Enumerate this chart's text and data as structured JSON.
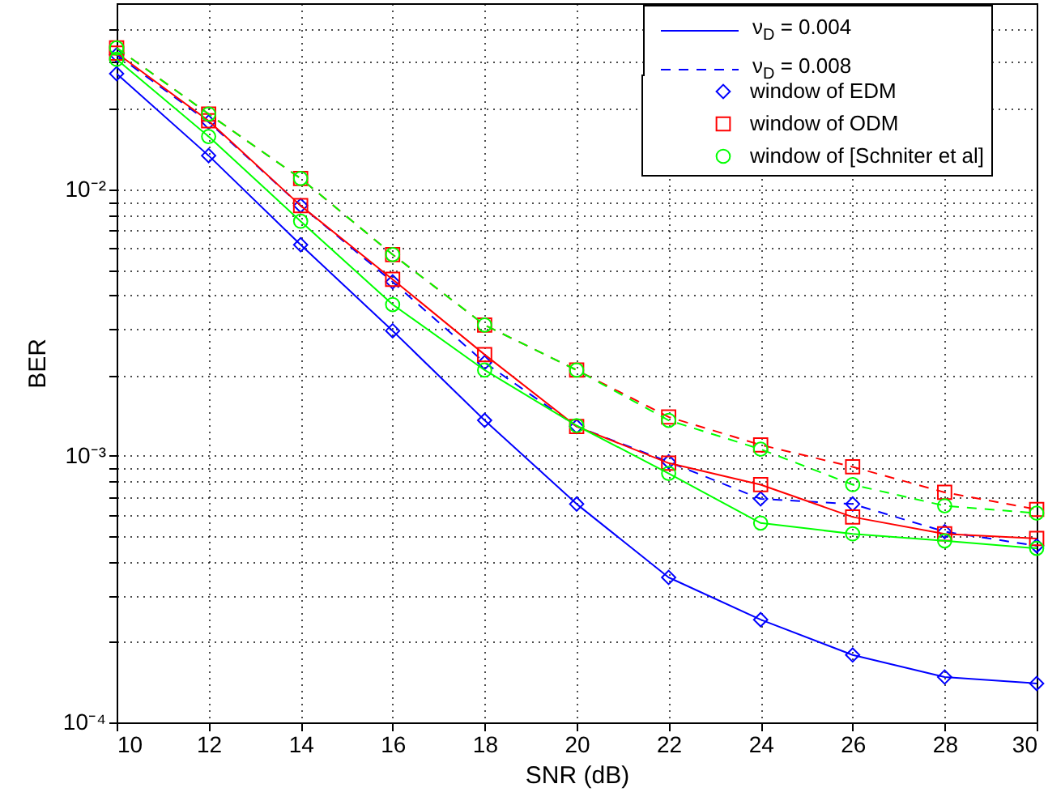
{
  "chart_data": {
    "type": "line",
    "xlabel": "SNR (dB)",
    "ylabel": "BER",
    "x": [
      10,
      12,
      14,
      16,
      18,
      20,
      22,
      24,
      26,
      28,
      30
    ],
    "series": [
      {
        "name": "window of EDM",
        "color": "#0000ff",
        "marker": "diamond",
        "line_style": "solid",
        "values": [
          0.0272,
          0.0134,
          0.0062,
          0.00295,
          0.00136,
          0.00066,
          0.00035,
          0.000243,
          0.000179,
          0.000148,
          0.00014
        ]
      },
      {
        "color": "#0000ff",
        "marker": "diamond",
        "line_style": "dashed",
        "values": [
          0.032,
          0.0179,
          0.0087,
          0.0045,
          0.00224,
          0.00129,
          0.00095,
          0.00069,
          0.00066,
          0.00052,
          0.00046
        ]
      },
      {
        "name": "window of ODM",
        "color": "#ff0000",
        "marker": "square",
        "line_style": "solid",
        "values": [
          0.0325,
          0.0181,
          0.0087,
          0.0046,
          0.0024,
          0.00129,
          0.00094,
          0.00078,
          0.00059,
          0.00051,
          0.00049
        ]
      },
      {
        "color": "#ff0000",
        "marker": "square",
        "line_style": "dashed",
        "values": [
          0.034,
          0.0192,
          0.011,
          0.0057,
          0.0031,
          0.0021,
          0.0014,
          0.0011,
          0.00091,
          0.00073,
          0.00063
        ]
      },
      {
        "name": "window of [Schniter et al]",
        "color": "#00ff00",
        "marker": "circle",
        "line_style": "solid",
        "values": [
          0.0308,
          0.0158,
          0.0076,
          0.0037,
          0.0021,
          0.0013,
          0.00086,
          0.00056,
          0.00051,
          0.00048,
          0.00045
        ]
      },
      {
        "color": "#00ff00",
        "marker": "circle",
        "line_style": "dashed",
        "values": [
          0.034,
          0.0192,
          0.011,
          0.0057,
          0.0031,
          0.0021,
          0.00136,
          0.00106,
          0.00078,
          0.00065,
          0.00061
        ]
      }
    ],
    "annotations": [
      "ν$_{D}$ = 0.004",
      "ν$_{D}$ = 0.008"
    ],
    "log": true,
    "grid": true,
    "legend": "top right",
    "xlim": [
      10,
      30
    ],
    "xticks": [
      10,
      12,
      14,
      16,
      18,
      20,
      22,
      24,
      26,
      28,
      30
    ],
    "ylim": [
      0.0001,
      0.05
    ],
    "yticks": [
      {
        "value": 0.0001,
        "label": "10⁻⁴"
      },
      {
        "value": 0.0002,
        "label": null
      },
      {
        "value": 0.0003,
        "label": null
      },
      {
        "value": 0.0004,
        "label": null
      },
      {
        "value": 0.0005,
        "label": null
      },
      {
        "value": 0.0006,
        "label": null
      },
      {
        "value": 0.0007,
        "label": null
      },
      {
        "value": 0.0008,
        "label": null
      },
      {
        "value": 0.0009,
        "label": null
      },
      {
        "value": 0.001,
        "label": "10⁻³"
      },
      {
        "value": 0.002,
        "label": null
      },
      {
        "value": 0.003,
        "label": null
      },
      {
        "value": 0.004,
        "label": null
      },
      {
        "value": 0.005,
        "label": null
      },
      {
        "value": 0.006,
        "label": null
      },
      {
        "value": 0.007,
        "label": null
      },
      {
        "value": 0.008,
        "label": null
      },
      {
        "value": 0.009,
        "label": null
      },
      {
        "value": 0.01,
        "label": "10⁻²"
      },
      {
        "value": 0.02,
        "label": null
      },
      {
        "value": 0.03,
        "label": null
      },
      {
        "value": 0.04,
        "label": null
      }
    ]
  }
}
